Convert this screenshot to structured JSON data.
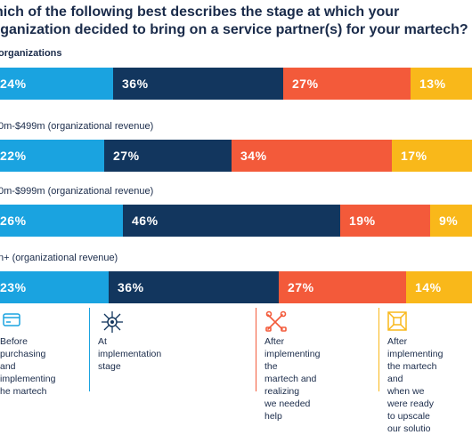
{
  "title_lines": [
    "hich of the following best describes the stage at which your",
    "rganization decided to bring on a service partner(s) for your martech?"
  ],
  "colors": {
    "before_purchasing": "#1aa3e0",
    "at_implementation": "#12365e",
    "after_realizing": "#f35a3a",
    "upscale": "#f9b81a"
  },
  "chart_data": {
    "type": "bar",
    "stacked": true,
    "orientation": "horizontal",
    "unit": "%",
    "categories": [
      "organizations",
      "0m-$499m (organizational revenue)",
      "0m-$999m (organizational revenue)",
      "n+ (organizational revenue)"
    ],
    "series": [
      {
        "key": "before_purchasing",
        "values": [
          24,
          22,
          26,
          23
        ]
      },
      {
        "key": "at_implementation",
        "values": [
          36,
          27,
          46,
          36
        ]
      },
      {
        "key": "after_realizing",
        "values": [
          27,
          34,
          19,
          27
        ]
      },
      {
        "key": "upscale",
        "values": [
          13,
          17,
          9,
          14
        ]
      }
    ],
    "value_labels": [
      [
        "24%",
        "36%",
        "27%",
        "13%"
      ],
      [
        "22%",
        "27%",
        "34%",
        "17%"
      ],
      [
        "26%",
        "46%",
        "19%",
        "9%"
      ],
      [
        "23%",
        "36%",
        "27%",
        "14%"
      ]
    ]
  },
  "legend": [
    {
      "icon": "credit-card-icon",
      "text": "Before purchasing\nand implementing\nhe martech"
    },
    {
      "icon": "network-gear-icon",
      "text": "At implementation\nstage"
    },
    {
      "icon": "tools-icon",
      "text": "After implementing the\nmartech and realizing\nwe needed help"
    },
    {
      "icon": "expand-icon",
      "text": "After implementing\nthe martech and\nwhen we were ready\nto upscale our solutio"
    }
  ]
}
